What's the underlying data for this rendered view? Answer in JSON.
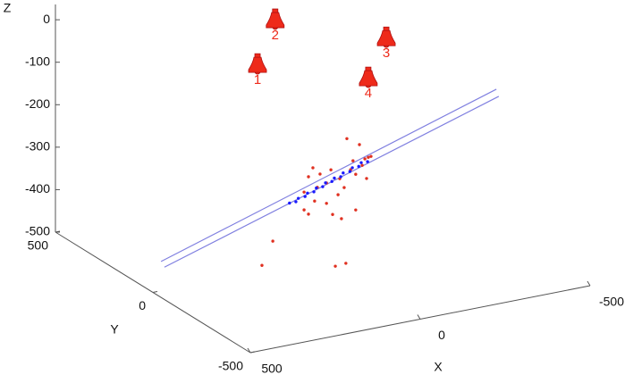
{
  "chart_data": {
    "type": "scatter3d",
    "x_label": "X",
    "y_label": "Y",
    "z_label": "Z",
    "xlim": [
      -500,
      500
    ],
    "ylim": [
      -500,
      500
    ],
    "zlim": [
      -500,
      36
    ],
    "xticks": [
      500,
      0,
      -500
    ],
    "yticks": [
      500,
      0,
      -500
    ],
    "zticks": [
      0,
      -100,
      -200,
      -300,
      -400,
      -500
    ],
    "lines": [
      {
        "color": "#8080e0",
        "x": [
          476,
          -511
        ],
        "y": [
          0,
          0
        ],
        "z": [
          -431,
          -181
        ]
      },
      {
        "color": "#8080e0",
        "x": [
          466,
          -518
        ],
        "y": [
          0,
          0
        ],
        "z": [
          -446,
          -199
        ]
      }
    ],
    "points": [
      {
        "color": "#e03020",
        "x": [
          -71,
          -108,
          29,
          42,
          8,
          -24,
          -89,
          -124,
          -134,
          -142,
          -116,
          -97,
          -50,
          -11,
          16,
          -63,
          55,
          42,
          24,
          -29,
          -55,
          -97,
          -11,
          147,
          179,
          -37,
          -68,
          -82,
          -129,
          -45,
          55
        ],
        "y": [
          0,
          0,
          0,
          0,
          0,
          0,
          0,
          0,
          0,
          0,
          0,
          0,
          0,
          0,
          0,
          0,
          0,
          0,
          0,
          0,
          0,
          0,
          0,
          0,
          0,
          0,
          0,
          0,
          0,
          0,
          0
        ],
        "z": [
          -228,
          -248,
          -281,
          -300,
          -299,
          -294,
          -283,
          -284,
          -282,
          -281,
          -298,
          -316,
          -319,
          -323,
          -329,
          -342,
          -376,
          -388,
          -360,
          -400,
          -414,
          -400,
          -371,
          -435,
          -487,
          -523,
          -521,
          -303,
          -331,
          -356,
          -334
        ]
      },
      {
        "color": "#1a1aff",
        "x": [
          95,
          82,
          69,
          55,
          42,
          29,
          16,
          3,
          -11,
          -24,
          -37,
          -50,
          -63,
          -77,
          -90,
          -103,
          -116,
          -129
        ],
        "y": [
          5,
          -5,
          5,
          -5,
          5,
          -5,
          5,
          -5,
          5,
          -5,
          5,
          -5,
          5,
          -5,
          5,
          -5,
          5,
          -5
        ],
        "z": [
          -355,
          -351,
          -348,
          -343,
          -340,
          -336,
          -332,
          -328,
          -324,
          -320,
          -317,
          -313,
          -309,
          -305,
          -301,
          -297,
          -293,
          -290
        ]
      }
    ],
    "microphones": {
      "color": "#ee2a1a",
      "labels": [
        "1",
        "2",
        "3",
        "4"
      ],
      "x": [
        192,
        140,
        -187,
        -134
      ],
      "y": [
        0,
        0,
        0,
        0
      ],
      "z": [
        -18,
        79,
        -15,
        -101
      ]
    }
  }
}
